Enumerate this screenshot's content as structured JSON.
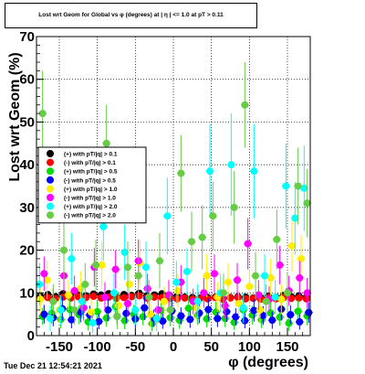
{
  "chart_data": {
    "type": "scatter",
    "title": "Lost wrt Geom for Global vs φ (degrees) at | η | <= 1.0 at pT > 0.11",
    "xlabel": "φ (degrees)",
    "ylabel": "Lost wrt Geom (%)",
    "xlim": [
      -180,
      180
    ],
    "ylim": [
      0,
      70
    ],
    "x_ticks": [
      -150,
      -100,
      -50,
      0,
      50,
      100,
      150
    ],
    "y_ticks": [
      0,
      10,
      20,
      30,
      40,
      50,
      60,
      70
    ],
    "grid": true,
    "legend_position": "left",
    "series": [
      {
        "name": "(+) with pT/|q| > 0.1",
        "color": "#000000",
        "x": [
          -175,
          -165,
          -155,
          -145,
          -135,
          -125,
          -115,
          -105,
          -95,
          -85,
          -75,
          -65,
          -55,
          -45,
          -35,
          -25,
          -15,
          -5,
          5,
          15,
          25,
          35,
          45,
          55,
          65,
          75,
          85,
          95,
          105,
          115,
          125,
          135,
          145,
          155,
          165,
          175
        ],
        "y": [
          9.2,
          9.6,
          9.1,
          9.8,
          9.4,
          9.9,
          9.3,
          9.7,
          9.5,
          9.8,
          9.2,
          9.6,
          9.4,
          9.9,
          9.3,
          9.5,
          9.8,
          9.4,
          9.2,
          9.0,
          8.9,
          8.8,
          8.9,
          9.0,
          8.7,
          8.9,
          9.1,
          9.0,
          8.8,
          8.9,
          9.2,
          9.0,
          9.4,
          9.1,
          9.3,
          9.0
        ]
      },
      {
        "name": "(-) with pT/|q| > 0.1",
        "color": "#ff0000",
        "x": [
          -175,
          -165,
          -155,
          -145,
          -135,
          -125,
          -115,
          -105,
          -95,
          -85,
          -75,
          -65,
          -55,
          -45,
          -35,
          -25,
          -15,
          -5,
          5,
          15,
          25,
          35,
          45,
          55,
          65,
          75,
          85,
          95,
          105,
          115,
          125,
          135,
          145,
          155,
          165,
          175
        ],
        "y": [
          8.6,
          8.9,
          8.7,
          9.0,
          8.8,
          9.1,
          8.9,
          9.2,
          8.8,
          9.0,
          8.7,
          8.9,
          9.1,
          9.3,
          8.8,
          9.0,
          8.9,
          8.7,
          8.6,
          8.8,
          8.5,
          8.7,
          8.6,
          8.9,
          8.5,
          8.8,
          8.9,
          8.6,
          8.7,
          8.5,
          8.8,
          8.6,
          8.9,
          8.7,
          8.8,
          8.6
        ]
      },
      {
        "name": "(+) with pT/|q| > 0.5",
        "color": "#00dd00",
        "x": [
          -172,
          -160,
          -148,
          -136,
          -124,
          -112,
          -100,
          -88,
          -76,
          -64,
          -52,
          -40,
          -28,
          -16,
          -4,
          8,
          20,
          32,
          44,
          56,
          68,
          80,
          92,
          104,
          116,
          128,
          140,
          152,
          164,
          176
        ],
        "y": [
          4.5,
          5.2,
          3.8,
          6.1,
          4.9,
          3.2,
          5.6,
          4.1,
          6.8,
          3.5,
          5.0,
          4.4,
          2.8,
          5.9,
          4.2,
          3.6,
          6.4,
          4.7,
          3.9,
          5.5,
          4.0,
          3.1,
          6.0,
          4.8,
          3.7,
          5.3,
          4.3,
          2.9,
          5.7,
          4.6
        ],
        "err": [
          2.0,
          2.4,
          2.0,
          2.8,
          2.2,
          2.0,
          2.6,
          2.0,
          3.0,
          2.0,
          2.2,
          2.0,
          1.8,
          2.6,
          2.0,
          2.0,
          2.8,
          2.2,
          2.0,
          2.4,
          2.0,
          1.8,
          2.6,
          2.2,
          2.0,
          2.4,
          2.0,
          1.8,
          2.6,
          2.2
        ]
      },
      {
        "name": "(-) with pT/|q| > 0.5",
        "color": "#0000ff",
        "x": [
          -170,
          -158,
          -146,
          -134,
          -122,
          -110,
          -98,
          -86,
          -74,
          -62,
          -50,
          -38,
          -26,
          -14,
          -2,
          10,
          22,
          34,
          46,
          58,
          70,
          82,
          94,
          106,
          118,
          130,
          142,
          154,
          166,
          178
        ],
        "y": [
          5.0,
          4.2,
          6.3,
          3.7,
          5.5,
          4.8,
          3.3,
          6.0,
          4.5,
          5.2,
          3.9,
          6.5,
          4.1,
          3.4,
          5.8,
          4.6,
          3.8,
          5.3,
          6.1,
          4.0,
          5.6,
          4.4,
          3.5,
          5.9,
          4.7,
          3.6,
          6.2,
          4.9,
          3.2,
          5.4
        ],
        "err": [
          2.2,
          2.0,
          2.8,
          2.0,
          2.4,
          2.2,
          1.8,
          2.6,
          2.0,
          2.2,
          2.0,
          2.8,
          2.0,
          1.8,
          2.6,
          2.0,
          2.0,
          2.4,
          2.6,
          2.0,
          2.4,
          2.0,
          1.8,
          2.6,
          2.2,
          2.0,
          2.6,
          2.2,
          1.8,
          2.4
        ]
      },
      {
        "name": "(+) with pT/|q| > 1.0",
        "color": "#ffee00",
        "x": [
          -175,
          -166,
          -150,
          -138,
          -122,
          -108,
          -94,
          -72,
          -58,
          -44,
          -30,
          -12,
          6,
          18,
          30,
          44,
          58,
          72,
          86,
          100,
          114,
          128,
          142,
          156,
          168
        ],
        "y": [
          8.5,
          13.0,
          6.0,
          9.5,
          11.0,
          5.5,
          16.5,
          7.0,
          12.0,
          17.0,
          5.0,
          8.0,
          10.5,
          15.0,
          6.5,
          14.0,
          9.0,
          12.5,
          7.5,
          11.5,
          6.0,
          13.5,
          8.5,
          21.0,
          18.0
        ],
        "err": [
          3.5,
          4.5,
          3.0,
          3.5,
          4.0,
          3.0,
          5.5,
          3.0,
          4.5,
          5.5,
          3.0,
          3.5,
          4.0,
          5.0,
          3.0,
          5.0,
          3.5,
          4.5,
          3.0,
          4.0,
          3.0,
          4.5,
          3.5,
          6.0,
          5.5
        ]
      },
      {
        "name": "(-) with pT/|q| > 1.0",
        "color": "#ff00ff",
        "x": [
          -170,
          -158,
          -144,
          -130,
          -118,
          -104,
          -90,
          -76,
          -60,
          -46,
          -34,
          -20,
          -6,
          10,
          26,
          40,
          54,
          68,
          84,
          98,
          112,
          126,
          140,
          152,
          166,
          176
        ],
        "y": [
          14.5,
          8.0,
          14.0,
          10.5,
          6.5,
          16.0,
          9.0,
          15.5,
          7.5,
          17.5,
          11.0,
          6.0,
          9.5,
          12.5,
          8.0,
          10.0,
          14.5,
          7.0,
          13.0,
          21.5,
          9.5,
          8.5,
          16.5,
          10.5,
          13.5,
          10.0
        ],
        "err": [
          4.0,
          3.0,
          4.0,
          3.5,
          3.0,
          4.5,
          3.5,
          4.5,
          3.0,
          5.0,
          3.5,
          3.0,
          3.5,
          4.0,
          3.0,
          3.5,
          4.5,
          3.0,
          4.0,
          6.0,
          3.5,
          3.0,
          4.5,
          3.5,
          4.0,
          3.5
        ]
      },
      {
        "name": "(+) with pT/|q| > 2.0",
        "color": "#00ffff",
        "x": [
          -176,
          -162,
          -148,
          -134,
          -120,
          -106,
          -92,
          -78,
          -64,
          -50,
          -36,
          -22,
          -8,
          4,
          18,
          32,
          48,
          62,
          76,
          92,
          106,
          120,
          134,
          148,
          160,
          172
        ],
        "y": [
          12.0,
          4.0,
          6.0,
          18.0,
          8.0,
          3.0,
          25.5,
          10.0,
          19.5,
          6.0,
          16.0,
          4.0,
          28.0,
          12.5,
          15.0,
          8.0,
          38.5,
          10.0,
          40.0,
          6.5,
          38.5,
          14.0,
          9.0,
          35.0,
          27.5,
          34.5
        ],
        "err": [
          5.0,
          3.0,
          3.5,
          6.0,
          4.0,
          2.5,
          8.0,
          4.5,
          6.5,
          3.5,
          6.0,
          3.0,
          9.0,
          5.0,
          5.5,
          4.0,
          11.0,
          4.5,
          12.0,
          3.5,
          11.0,
          5.0,
          4.0,
          10.0,
          8.5,
          10.0
        ]
      },
      {
        "name": "(-) with pT/|q| > 2.0",
        "color": "#66cc44",
        "x": [
          -172,
          -158,
          -144,
          -130,
          -116,
          -102,
          -88,
          -74,
          -60,
          -46,
          -32,
          -18,
          -4,
          10,
          24,
          38,
          52,
          66,
          80,
          94,
          108,
          122,
          136,
          150,
          164,
          176
        ],
        "y": [
          52.0,
          8.0,
          20.0,
          6.0,
          12.0,
          16.5,
          45.0,
          4.5,
          16.0,
          14.0,
          9.0,
          17.5,
          6.0,
          38.0,
          22.0,
          23.0,
          28.0,
          10.0,
          30.0,
          54.0,
          14.0,
          8.0,
          22.5,
          10.0,
          35.0,
          31.0
        ],
        "err": [
          10.0,
          4.0,
          7.0,
          3.5,
          5.0,
          6.0,
          9.0,
          3.0,
          6.0,
          5.5,
          4.0,
          6.5,
          3.5,
          9.0,
          7.0,
          7.5,
          8.0,
          4.5,
          8.5,
          10.0,
          5.5,
          4.0,
          7.0,
          4.5,
          9.0,
          8.0
        ]
      }
    ]
  },
  "footer": {
    "timestamp": "Tue Dec 21 12:54:21 2021"
  }
}
